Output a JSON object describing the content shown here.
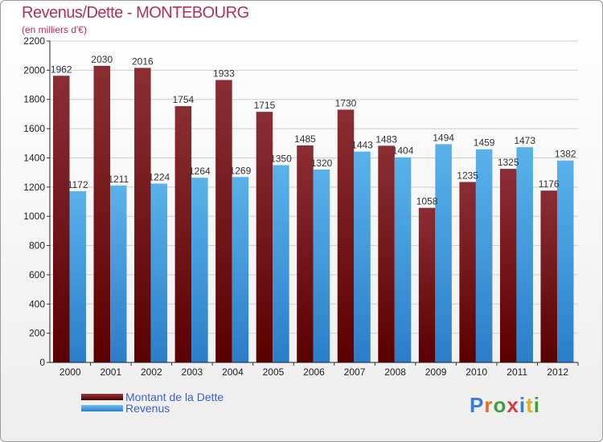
{
  "title": "Revenus/Dette - MONTEBOURG",
  "subtitle": "(en milliers d'€)",
  "legend": [
    {
      "label": "Montant de la Dette",
      "color": "#6e1010"
    },
    {
      "label": "Revenus",
      "color": "#4aa3e0"
    }
  ],
  "logo_text": "Proxiti",
  "logo_colors": [
    "#3a7fd0",
    "#e07020",
    "#40a040",
    "#d04040",
    "#3a7fd0",
    "#e0b020",
    "#40a040"
  ],
  "chart_data": {
    "type": "bar",
    "title": "Revenus/Dette - MONTEBOURG",
    "subtitle": "(en milliers d'€)",
    "categories": [
      "2000",
      "2001",
      "2002",
      "2003",
      "2004",
      "2005",
      "2006",
      "2007",
      "2008",
      "2009",
      "2010",
      "2011",
      "2012"
    ],
    "series": [
      {
        "name": "Montant de la Dette",
        "color": "#7a1a1a",
        "values": [
          1962,
          2030,
          2016,
          1754,
          1933,
          1715,
          1485,
          1730,
          1483,
          1058,
          1235,
          1325,
          1176
        ],
        "labels": [
          "1962",
          "2030",
          "2016",
          "1754",
          "1933",
          "1715",
          "1485",
          "1730",
          "1483",
          "1058",
          "1235",
          "1325",
          "1176"
        ]
      },
      {
        "name": "Revenus",
        "color": "#4aa3e0",
        "values": [
          1172,
          1211,
          1224,
          1264,
          1269,
          1350,
          1320,
          1443,
          1404,
          1494,
          1459,
          1473,
          1382
        ],
        "labels": [
          "1172",
          "1211",
          "1224",
          "1264",
          "1269",
          "1350",
          "1320",
          "1443",
          "1404",
          "1494",
          "1459",
          "1473",
          "1382"
        ]
      }
    ],
    "yticks": [
      0,
      200,
      400,
      600,
      800,
      1000,
      1200,
      1400,
      1600,
      1800,
      2000,
      2200
    ],
    "ylim": [
      0,
      2200
    ],
    "grid": true,
    "legend_position": "bottom-left"
  }
}
